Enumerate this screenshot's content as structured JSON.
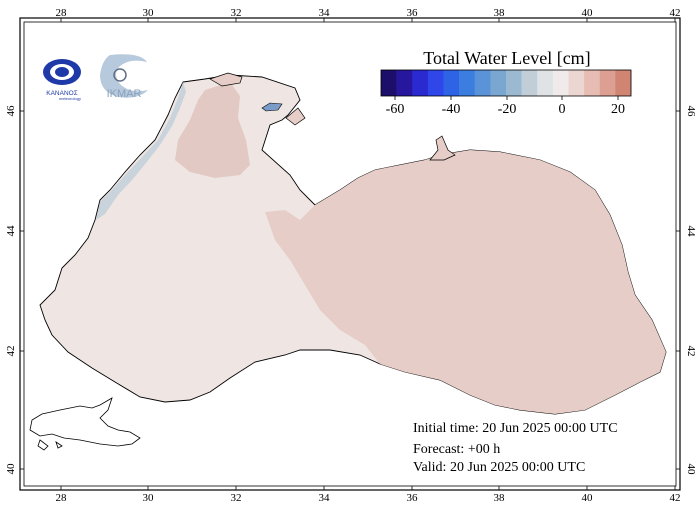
{
  "logos": {
    "left_caption": "ΚΑΝΑΝΟΣ",
    "left_subcaption": "meteorology",
    "right_text": "IKMAR"
  },
  "colorbar": {
    "title": "Total Water Level [cm]",
    "ticks": [
      "-60",
      "-40",
      "-20",
      "0",
      "20"
    ],
    "colors": [
      "#1b0f6b",
      "#26179e",
      "#2b2ad0",
      "#2f47e8",
      "#2e63e6",
      "#3b7ee0",
      "#5b93d8",
      "#7aa6d2",
      "#9cb9d2",
      "#c1ced8",
      "#dfe3e6",
      "#f0ebea",
      "#ecd6d1",
      "#e6bcb3",
      "#dc9f92",
      "#cf8571"
    ]
  },
  "axes": {
    "lon_ticks": [
      "28",
      "30",
      "32",
      "34",
      "36",
      "38",
      "40",
      "42"
    ],
    "lat_ticks": [
      "46",
      "44",
      "42",
      "40"
    ]
  },
  "colors": {
    "sea_neutral": "#efe5e3",
    "sea_positive": "#e6cdc8",
    "sea_north_positive": "#e3c9c3",
    "sea_negative_coast": "#c9d3db",
    "coastline": "#000000"
  },
  "info": {
    "initial": "Initial time: 20 Jun 2025 00:00 UTC",
    "forecast": "Forecast: +00 h",
    "valid": "Valid: 20 Jun 2025 00:00 UTC"
  }
}
